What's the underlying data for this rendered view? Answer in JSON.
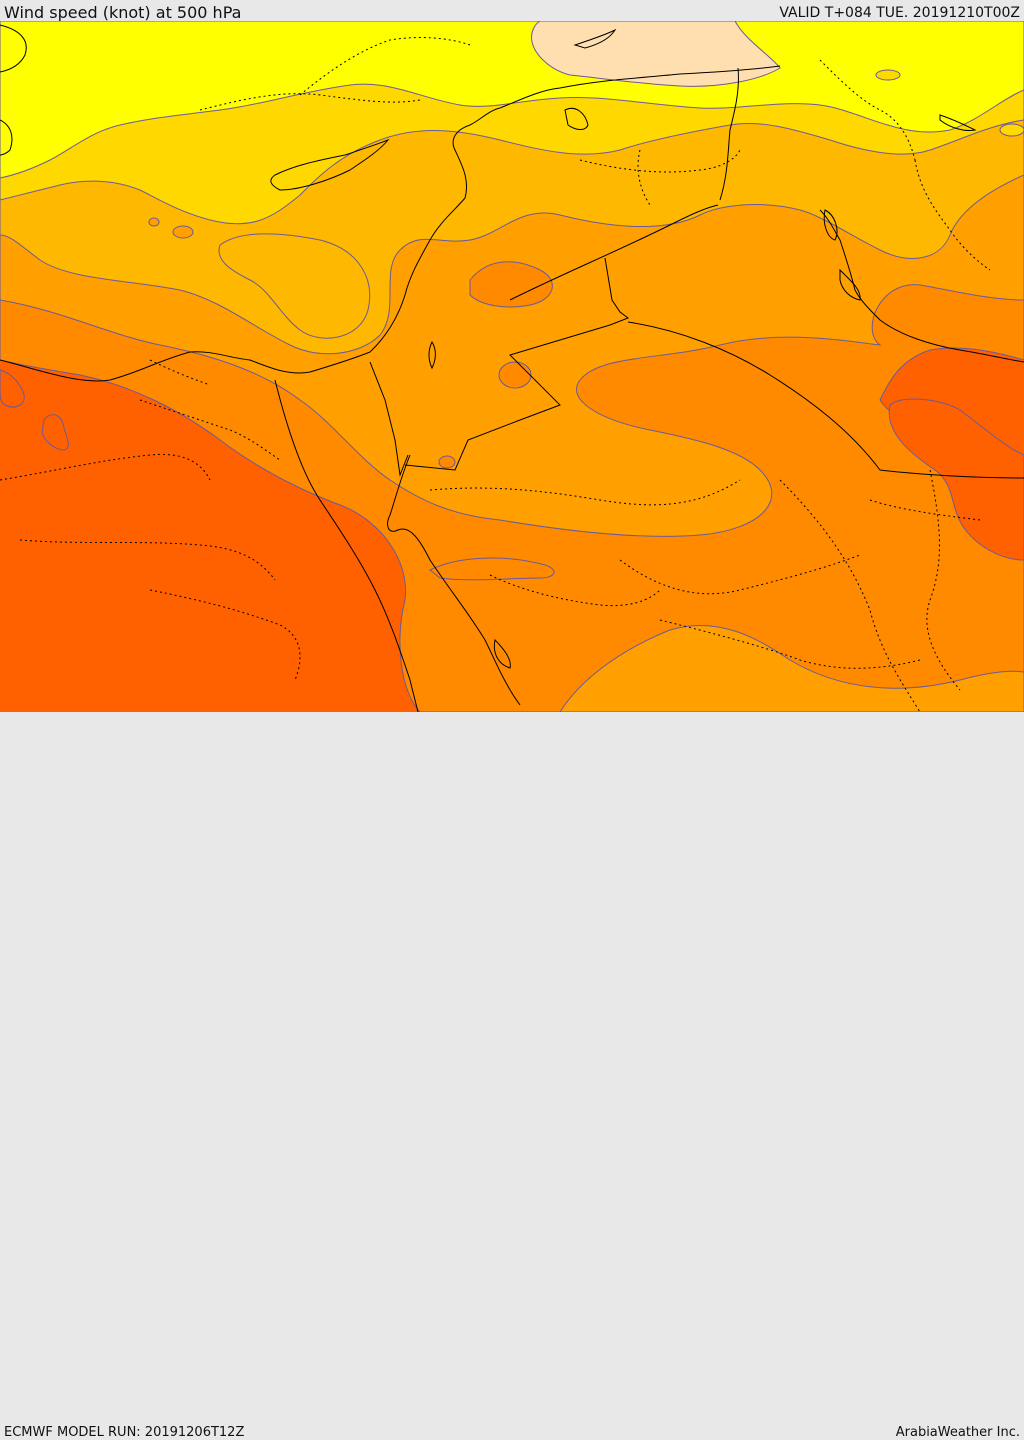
{
  "header": {
    "title": "Wind speed (knot) at 500 hPa",
    "valid": "VALID T+084 TUE. 20191210T00Z"
  },
  "footer": {
    "model_run": "ECMWF MODEL RUN: 20191206T12Z",
    "credit": "ArabiaWeather Inc."
  },
  "colors": {
    "band_5": "#ffdfb0",
    "band_4": "#ffff00",
    "band_3": "#ffd800",
    "band_2": "#ffb800",
    "band_1": "#ffa000",
    "band_0": "#ff8a00",
    "band_min": "#ff6000",
    "contour": "#6b5a9a",
    "coast": "#000000"
  }
}
